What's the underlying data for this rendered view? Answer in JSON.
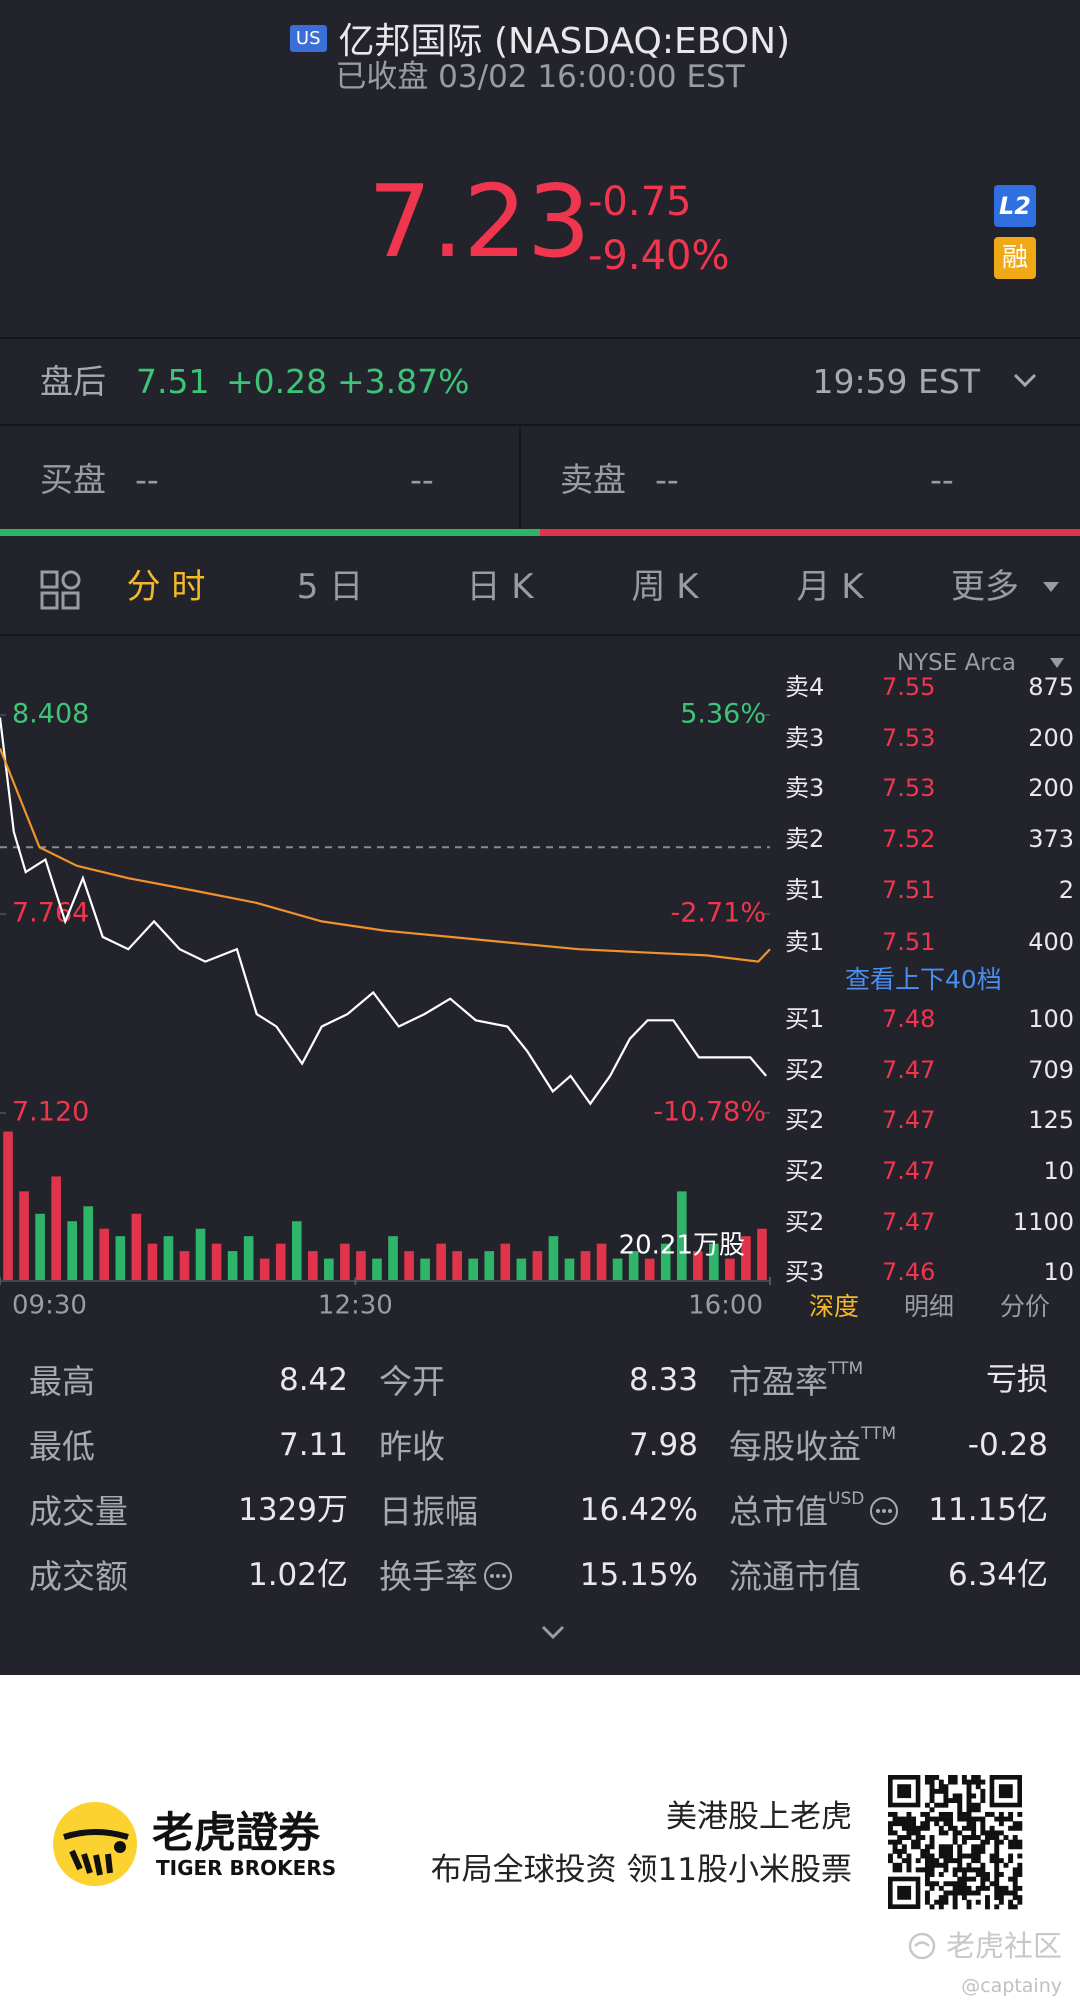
{
  "header": {
    "market_badge": "US",
    "title": "亿邦国际 (NASDAQ:EBON)",
    "status": "已收盘 03/02 16:00:00 EST"
  },
  "quote": {
    "price": "7.23",
    "change": "-0.75",
    "change_pct": "-9.40%",
    "badges": [
      "L2",
      "融"
    ]
  },
  "after_hours": {
    "label": "盘后",
    "price": "7.51",
    "change": "+0.28",
    "change_pct": "+3.87%",
    "time": "19:59 EST"
  },
  "book_top": {
    "bid_label": "买盘",
    "bid_price": "--",
    "bid_size": "--",
    "ask_label": "卖盘",
    "ask_price": "--",
    "ask_size": "--"
  },
  "tabs": [
    "分 时",
    "5 日",
    "日 K",
    "周 K",
    "月 K",
    "更多"
  ],
  "exchange": "NYSE Arca",
  "chart_data": {
    "type": "line",
    "xlim": [
      0,
      390
    ],
    "xticks": [
      {
        "value": 0,
        "label": "09:30"
      },
      {
        "value": 180,
        "label": "12:30"
      },
      {
        "value": 390,
        "label": "16:00"
      }
    ],
    "ylim": [
      7.12,
      8.408
    ],
    "yticks": [
      {
        "value": 8.408,
        "label": "8.408"
      },
      {
        "value": 7.764,
        "label": "7.764"
      },
      {
        "value": 7.12,
        "label": "7.120"
      }
    ],
    "y2lim": [
      -10.78,
      5.36
    ],
    "y2ticks": [
      {
        "value": 5.36,
        "label": "5.36%"
      },
      {
        "value": -2.71,
        "label": "-2.71%"
      },
      {
        "value": -10.78,
        "label": "-10.78%"
      }
    ],
    "reference_line": 7.98,
    "series": [
      {
        "color": "#ffffff",
        "x": [
          0,
          7,
          13,
          23,
          33,
          42,
          52,
          65,
          78,
          91,
          104,
          120,
          130,
          140,
          153,
          163,
          176,
          189,
          202,
          215,
          228,
          241,
          257,
          267,
          280,
          289,
          299,
          309,
          319,
          328,
          341,
          354,
          367,
          380,
          388
        ],
        "values": [
          8.4,
          8.03,
          7.9,
          7.94,
          7.74,
          7.88,
          7.69,
          7.65,
          7.74,
          7.65,
          7.61,
          7.65,
          7.44,
          7.4,
          7.28,
          7.4,
          7.44,
          7.51,
          7.4,
          7.44,
          7.49,
          7.42,
          7.4,
          7.32,
          7.19,
          7.24,
          7.15,
          7.24,
          7.36,
          7.42,
          7.42,
          7.3,
          7.3,
          7.3,
          7.24
        ]
      },
      {
        "color": "#f0932b",
        "x": [
          0,
          20,
          39,
          65,
          98,
          130,
          163,
          195,
          228,
          260,
          293,
          325,
          358,
          384,
          390
        ],
        "values": [
          8.3,
          7.98,
          7.92,
          7.88,
          7.84,
          7.8,
          7.74,
          7.71,
          7.69,
          7.67,
          7.65,
          7.64,
          7.63,
          7.61,
          7.65
        ]
      }
    ],
    "volume": {
      "label": {
        "value": 20.21,
        "label": "20.21万股"
      },
      "values": [
        20,
        12,
        9,
        14,
        8,
        10,
        7,
        6,
        9,
        5,
        6,
        4,
        7,
        5,
        4,
        6,
        3,
        5,
        8,
        4,
        3,
        5,
        4,
        3,
        6,
        4,
        3,
        5,
        4,
        3,
        4,
        5,
        3,
        4,
        6,
        3,
        4,
        5,
        3,
        4,
        3,
        5,
        12,
        4,
        5,
        3,
        6,
        7
      ],
      "colors": [
        "#e0344b",
        "#e0344b",
        "#2fb56a",
        "#e0344b",
        "#2fb56a",
        "#2fb56a",
        "#e0344b",
        "#2fb56a",
        "#e0344b",
        "#e0344b",
        "#2fb56a",
        "#e0344b",
        "#2fb56a",
        "#e0344b",
        "#2fb56a",
        "#2fb56a",
        "#e0344b",
        "#e0344b",
        "#2fb56a",
        "#e0344b",
        "#2fb56a",
        "#e0344b",
        "#e0344b",
        "#2fb56a",
        "#2fb56a",
        "#e0344b",
        "#2fb56a",
        "#e0344b",
        "#e0344b",
        "#2fb56a",
        "#2fb56a",
        "#e0344b",
        "#2fb56a",
        "#e0344b",
        "#2fb56a",
        "#2fb56a",
        "#e0344b",
        "#e0344b",
        "#2fb56a",
        "#2fb56a",
        "#e0344b",
        "#2fb56a",
        "#2fb56a",
        "#e0344b",
        "#2fb56a",
        "#e0344b",
        "#e0344b",
        "#e0344b"
      ]
    }
  },
  "order_book": {
    "rows": [
      [
        "卖4",
        "7.55",
        "875"
      ],
      [
        "卖3",
        "7.53",
        "200"
      ],
      [
        "卖3",
        "7.53",
        "200"
      ],
      [
        "卖2",
        "7.52",
        "373"
      ],
      [
        "卖1",
        "7.51",
        "2"
      ],
      [
        "卖1",
        "7.51",
        "400"
      ],
      [
        "买1",
        "7.48",
        "100"
      ],
      [
        "买2",
        "7.47",
        "709"
      ],
      [
        "买2",
        "7.47",
        "125"
      ],
      [
        "买2",
        "7.47",
        "10"
      ],
      [
        "买2",
        "7.47",
        "1100"
      ],
      [
        "买3",
        "7.46",
        "10"
      ]
    ],
    "link": "查看上下40档"
  },
  "detail_tabs": [
    "深度",
    "明细",
    "分价"
  ],
  "stats": [
    [
      {
        "label": "最高",
        "value": "8.42"
      },
      {
        "label": "今开",
        "value": "8.33"
      },
      {
        "label": "市盈率",
        "sup": "TTM",
        "value": "亏损"
      }
    ],
    [
      {
        "label": "最低",
        "value": "7.11"
      },
      {
        "label": "昨收",
        "value": "7.98"
      },
      {
        "label": "每股收益",
        "sup": "TTM",
        "value": "-0.28"
      }
    ],
    [
      {
        "label": "成交量",
        "value": "1329万"
      },
      {
        "label": "日振幅",
        "value": "16.42%"
      },
      {
        "label": "总市值",
        "sup": "USD",
        "info": true,
        "value": "11.15亿"
      }
    ],
    [
      {
        "label": "成交额",
        "value": "1.02亿"
      },
      {
        "label": "换手率",
        "info": true,
        "value": "15.15%"
      },
      {
        "label": "流通市值",
        "value": "6.34亿"
      }
    ]
  ],
  "footer": {
    "brand": "老虎證券",
    "brand_en": "TIGER BROKERS",
    "slogan": "美港股上老虎",
    "promo": "布局全球投资 领11股小米股票",
    "watermark": "老虎社区",
    "user": "@captainy"
  }
}
